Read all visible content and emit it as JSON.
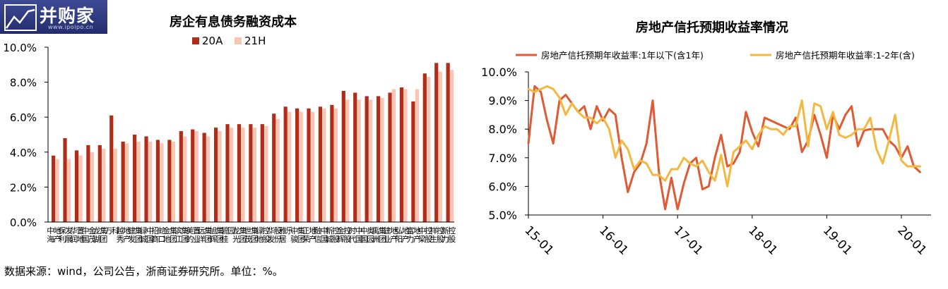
{
  "logo": {
    "main": "并购家",
    "sub": "www.ipoipo.cn"
  },
  "footnote": "数据来源：wind，公司公告，浙商证券研究所。单位：%。",
  "chart_data": [
    {
      "type": "bar",
      "title": "房企有息债务融资成本",
      "ylim": [
        0,
        10
      ],
      "yticks": [
        "0.0%",
        "2.0%",
        "4.0%",
        "6.0%",
        "8.0%",
        "10.0%"
      ],
      "legend_position": "top",
      "categories": [
        "中海地产",
        "保利发展",
        "华润置地",
        "中国金茂",
        "龙湖集团",
        "万科",
        "越秀地产",
        "建发集团",
        "绿城中国",
        "招商蛇口",
        "金地集团",
        "滨江集团",
        "美的置业",
        "远洋集团",
        "旭辉集团",
        "碧桂园",
        "龙光集团",
        "世茂集团",
        "绿地控股",
        "华发股份",
        "雅居乐",
        "中骏集团",
        "正荣地产",
        "融信中国",
        "新城控股",
        "金辉控股",
        "时代中国",
        "中国奥园",
        "禹洲集团",
        "建业地产",
        "弘阳地产",
        "富力地产",
        "中梁控股",
        "祥生控股",
        "新力控股"
      ],
      "series": [
        {
          "name": "20A",
          "color": "#b22c17",
          "values": [
            3.8,
            4.8,
            4.1,
            4.4,
            4.4,
            6.1,
            4.6,
            5.0,
            4.9,
            4.7,
            4.7,
            5.2,
            5.3,
            5.1,
            5.4,
            5.6,
            5.6,
            5.6,
            5.6,
            6.2,
            6.6,
            6.5,
            6.5,
            6.6,
            6.7,
            7.5,
            7.4,
            7.2,
            7.2,
            7.4,
            7.7,
            6.9,
            8.5,
            9.1,
            9.1
          ]
        },
        {
          "name": "21H",
          "color": "#f9c6b5",
          "values": [
            3.6,
            3.6,
            3.8,
            4.0,
            4.2,
            4.2,
            4.5,
            4.6,
            4.6,
            4.5,
            4.6,
            4.9,
            5.2,
            4.9,
            5.2,
            5.4,
            5.4,
            5.4,
            5.5,
            5.9,
            6.3,
            6.3,
            6.3,
            6.5,
            6.5,
            7.0,
            7.0,
            7.0,
            7.1,
            7.6,
            7.6,
            7.6,
            8.3,
            8.6,
            8.7
          ]
        }
      ]
    },
    {
      "type": "line",
      "title": "房地产信托预期收益率情况",
      "ylim": [
        5,
        10
      ],
      "yticks": [
        "5.0%",
        "6.0%",
        "7.0%",
        "8.0%",
        "9.0%",
        "10.0%"
      ],
      "xticks": [
        "15-01",
        "16-01",
        "17-01",
        "18-01",
        "19-01",
        "20-01"
      ],
      "legend_position": "top",
      "x": [
        "2015-01",
        "2015-02",
        "2015-03",
        "2015-04",
        "2015-05",
        "2015-06",
        "2015-07",
        "2015-08",
        "2015-09",
        "2015-10",
        "2015-11",
        "2015-12",
        "2016-01",
        "2016-02",
        "2016-03",
        "2016-04",
        "2016-05",
        "2016-06",
        "2016-07",
        "2016-08",
        "2016-09",
        "2016-10",
        "2016-11",
        "2016-12",
        "2017-01",
        "2017-02",
        "2017-03",
        "2017-04",
        "2017-05",
        "2017-06",
        "2017-07",
        "2017-08",
        "2017-09",
        "2017-10",
        "2017-11",
        "2017-12",
        "2018-01",
        "2018-02",
        "2018-03",
        "2018-04",
        "2018-05",
        "2018-06",
        "2018-07",
        "2018-08",
        "2018-09",
        "2018-10",
        "2018-11",
        "2018-12",
        "2019-01",
        "2019-02",
        "2019-03",
        "2019-04",
        "2019-05",
        "2019-06",
        "2019-07",
        "2019-08",
        "2019-09",
        "2019-10",
        "2019-11",
        "2019-12",
        "2020-01",
        "2020-02",
        "2020-03",
        "2020-04"
      ],
      "series": [
        {
          "name": "房地产信托预期年收益率:1年以下(含1年)",
          "color": "#e05a33",
          "values": [
            7.5,
            9.5,
            9.3,
            8.3,
            7.5,
            9.0,
            9.2,
            8.9,
            8.6,
            8.8,
            8.0,
            8.8,
            8.3,
            8.7,
            8.5,
            7.0,
            5.8,
            6.5,
            6.8,
            7.5,
            9.0,
            6.5,
            5.2,
            6.3,
            5.2,
            6.1,
            6.8,
            7.0,
            5.9,
            6.0,
            7.0,
            7.8,
            6.7,
            6.8,
            7.2,
            8.6,
            7.9,
            7.4,
            8.4,
            8.3,
            8.2,
            8.1,
            8.0,
            8.4,
            7.2,
            7.6,
            8.5,
            7.8,
            7.0,
            8.5,
            8.0,
            8.5,
            8.8,
            7.4,
            7.95,
            8.0,
            8.0,
            8.0,
            7.6,
            7.4,
            7.0,
            7.4,
            6.7,
            6.5
          ]
        },
        {
          "name": "房地产信托预期年收益率:1-2年(含)",
          "color": "#f4b840",
          "values": [
            9.4,
            9.3,
            9.4,
            9.5,
            9.4,
            9.1,
            8.5,
            8.9,
            8.6,
            8.4,
            8.4,
            8.2,
            8.4,
            8.0,
            7.0,
            7.6,
            7.3,
            6.6,
            6.9,
            6.8,
            6.4,
            6.4,
            6.2,
            6.6,
            6.6,
            7.0,
            6.8,
            6.7,
            6.9,
            6.5,
            6.2,
            7.1,
            6.0,
            7.2,
            7.4,
            7.6,
            7.3,
            7.8,
            8.1,
            8.0,
            8.0,
            7.8,
            8.1,
            8.1,
            9.0,
            7.4,
            8.9,
            8.8,
            8.0,
            8.6,
            7.8,
            7.7,
            7.8,
            8.0,
            8.0,
            8.4,
            7.3,
            6.8,
            7.6,
            8.5,
            6.9,
            6.7,
            6.7,
            6.7
          ]
        }
      ]
    }
  ]
}
